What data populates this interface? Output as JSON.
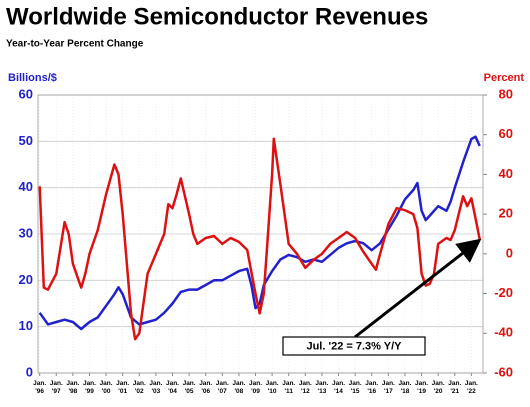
{
  "chart_data": {
    "type": "line",
    "title": "Worldwide Semiconductor Revenues",
    "subtitle": "Year-to-Year Percent Change",
    "ylabel": "Billions/$",
    "y2label": "Percent",
    "annotation": "Jul. '22 = 7.3% Y/Y",
    "xlim": [
      1995.9,
      2022.7
    ],
    "xticks": [
      {
        "value": 1996,
        "label": "Jan. '96"
      },
      {
        "value": 1997,
        "label": "Jan. '97"
      },
      {
        "value": 1998,
        "label": "Jan. '98"
      },
      {
        "value": 1999,
        "label": "Jan. '99"
      },
      {
        "value": 2000,
        "label": "Jan. '00"
      },
      {
        "value": 2001,
        "label": "Jan. '01"
      },
      {
        "value": 2002,
        "label": "Jan. '02"
      },
      {
        "value": 2003,
        "label": "Jan. '03"
      },
      {
        "value": 2004,
        "label": "Jan. '04"
      },
      {
        "value": 2005,
        "label": "Jan. '05"
      },
      {
        "value": 2006,
        "label": "Jan. '06"
      },
      {
        "value": 2007,
        "label": "Jan. '07"
      },
      {
        "value": 2008,
        "label": "Jan. '08"
      },
      {
        "value": 2009,
        "label": "Jan. '09"
      },
      {
        "value": 2010,
        "label": "Jan. '10"
      },
      {
        "value": 2011,
        "label": "Jan. '11"
      },
      {
        "value": 2012,
        "label": "Jan. '12"
      },
      {
        "value": 2013,
        "label": "Jan. '13"
      },
      {
        "value": 2014,
        "label": "Jan. '14"
      },
      {
        "value": 2015,
        "label": "Jan. '15"
      },
      {
        "value": 2016,
        "label": "Jan. '16"
      },
      {
        "value": 2017,
        "label": "Jan. '17"
      },
      {
        "value": 2018,
        "label": "Jan. '18"
      },
      {
        "value": 2019,
        "label": "Jan. '19"
      },
      {
        "value": 2020,
        "label": "Jan. '20"
      },
      {
        "value": 2021,
        "label": "Jan. '21"
      },
      {
        "value": 2022,
        "label": "Jan. '22"
      }
    ],
    "ylim": [
      0,
      60
    ],
    "yticks": [
      0,
      10,
      20,
      30,
      40,
      50,
      60
    ],
    "y2lim": [
      -60,
      80
    ],
    "y2ticks": [
      -60,
      -40,
      -20,
      0,
      20,
      40,
      60,
      80
    ],
    "grid": true,
    "series": [
      {
        "color": "#2222cc",
        "x": [
          1996,
          1996.5,
          1997,
          1997.5,
          1998,
          1998.5,
          1999,
          1999.5,
          2000,
          2000.5,
          2000.75,
          2001,
          2001.5,
          2002,
          2002.5,
          2003,
          2003.5,
          2004,
          2004.5,
          2005,
          2005.5,
          2006,
          2006.5,
          2007,
          2007.5,
          2008,
          2008.5,
          2008.75,
          2009,
          2009.25,
          2009.5,
          2010,
          2010.5,
          2011,
          2011.5,
          2012,
          2012.5,
          2013,
          2013.5,
          2014,
          2014.5,
          2015,
          2015.5,
          2016,
          2016.5,
          2017,
          2017.5,
          2018,
          2018.5,
          2018.75,
          2019,
          2019.25,
          2019.5,
          2020,
          2020.5,
          2020.75,
          2021,
          2021.5,
          2022,
          2022.25,
          2022.5
        ],
        "values": [
          13,
          10.5,
          11,
          11.5,
          11,
          9.5,
          11,
          12,
          14.5,
          17,
          18.5,
          17,
          12,
          10.5,
          11,
          11.5,
          13,
          15,
          17.5,
          18,
          18,
          19,
          20,
          20,
          21,
          22,
          22.5,
          19,
          14,
          15,
          19,
          22,
          24.5,
          25.5,
          25,
          24,
          24.5,
          24,
          25.5,
          27,
          28,
          28.5,
          28,
          26.5,
          28,
          31,
          34,
          37.5,
          39.5,
          41,
          35,
          33,
          34,
          36,
          35,
          37,
          40,
          45.5,
          50.5,
          51,
          49
        ]
      },
      {
        "color": "#dd1111",
        "axis": "y2",
        "x": [
          1996,
          1996.25,
          1996.5,
          1997,
          1997.5,
          1997.75,
          1998,
          1998.5,
          1998.75,
          1999,
          1999.5,
          2000,
          2000.5,
          2000.75,
          2001,
          2001.5,
          2001.75,
          2002,
          2002.5,
          2003,
          2003.5,
          2003.75,
          2004,
          2004.25,
          2004.5,
          2005,
          2005.25,
          2005.5,
          2006,
          2006.5,
          2007,
          2007.5,
          2008,
          2008.5,
          2009,
          2009.25,
          2009.5,
          2009.75,
          2010,
          2010.1,
          2010.5,
          2011,
          2011.5,
          2012,
          2012.5,
          2013,
          2013.5,
          2014,
          2014.5,
          2015,
          2015.5,
          2016,
          2016.25,
          2016.5,
          2017,
          2017.5,
          2018,
          2018.5,
          2018.75,
          2019,
          2019.25,
          2019.5,
          2019.75,
          2020,
          2020.5,
          2020.75,
          2021,
          2021.5,
          2021.75,
          2022,
          2022.25,
          2022.5
        ],
        "values": [
          34,
          -17,
          -18,
          -10,
          16,
          10,
          -5,
          -17,
          -10,
          0,
          12,
          30,
          45,
          40,
          20,
          -30,
          -43,
          -40,
          -10,
          0,
          10,
          25,
          23,
          30,
          38,
          20,
          10,
          5,
          8,
          9,
          5,
          8,
          6,
          2,
          -20,
          -30,
          -20,
          10,
          40,
          58,
          35,
          5,
          0,
          -7,
          -3,
          0,
          5,
          8,
          11,
          8,
          1,
          -5,
          -8,
          0,
          15,
          23,
          22,
          20,
          13,
          -10,
          -16,
          -15,
          -10,
          5,
          8,
          7,
          12,
          29,
          24,
          28,
          18,
          7.3
        ]
      }
    ]
  }
}
